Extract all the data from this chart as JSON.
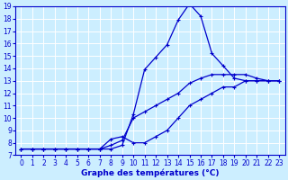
{
  "xlabel": "Graphe des températures (°C)",
  "x": [
    0,
    1,
    2,
    3,
    4,
    5,
    6,
    7,
    8,
    9,
    10,
    11,
    12,
    13,
    14,
    15,
    16,
    17,
    18,
    19,
    20,
    21,
    22,
    23
  ],
  "line_peak": [
    7.5,
    7.5,
    7.5,
    7.5,
    7.5,
    7.5,
    7.5,
    7.5,
    7.5,
    7.8,
    10.3,
    13.9,
    14.9,
    15.9,
    17.9,
    19.2,
    18.2,
    15.2,
    14.2,
    13.2,
    13.0,
    13.0,
    13.0,
    13.0
  ],
  "line_straight": [
    7.5,
    7.5,
    7.5,
    7.5,
    7.5,
    7.5,
    7.5,
    7.5,
    7.8,
    8.2,
    10.0,
    10.5,
    11.0,
    11.5,
    12.0,
    12.8,
    13.2,
    13.5,
    13.5,
    13.5,
    13.5,
    13.2,
    13.0,
    13.0
  ],
  "line_dip": [
    7.5,
    7.5,
    7.5,
    7.5,
    7.5,
    7.5,
    7.5,
    7.5,
    8.3,
    8.5,
    8.0,
    8.0,
    8.5,
    9.0,
    10.0,
    11.0,
    11.5,
    12.0,
    12.5,
    12.5,
    13.0,
    13.0,
    13.0,
    13.0
  ],
  "line_color": "#0000cc",
  "marker": "+",
  "markersize": 3,
  "linewidth": 0.9,
  "bg_color": "#cceeff",
  "grid_color": "#ffffff",
  "ylim": [
    7,
    19
  ],
  "xlim": [
    -0.5,
    23.5
  ],
  "yticks": [
    7,
    8,
    9,
    10,
    11,
    12,
    13,
    14,
    15,
    16,
    17,
    18,
    19
  ],
  "xticks": [
    0,
    1,
    2,
    3,
    4,
    5,
    6,
    7,
    8,
    9,
    10,
    11,
    12,
    13,
    14,
    15,
    16,
    17,
    18,
    19,
    20,
    21,
    22,
    23
  ],
  "tick_fontsize": 5.5,
  "xlabel_fontsize": 6.5
}
